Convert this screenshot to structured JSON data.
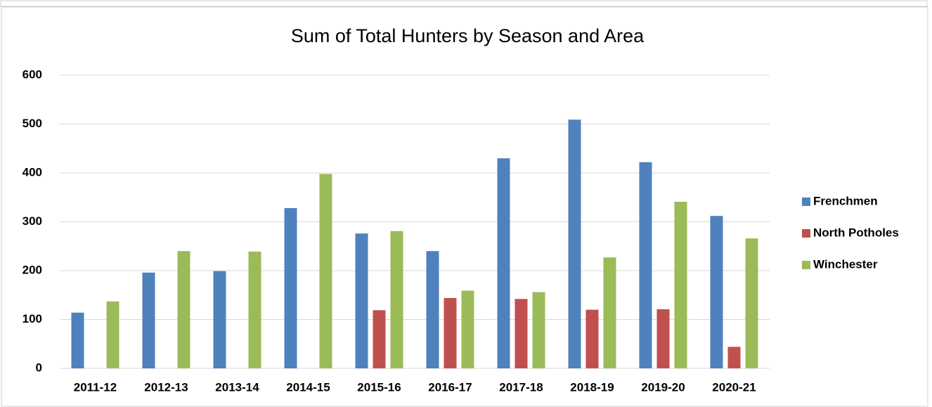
{
  "chart_data": {
    "type": "bar",
    "title": "Sum of Total Hunters by Season and Area",
    "categories": [
      "2011-12",
      "2012-13",
      "2013-14",
      "2014-15",
      "2015-16",
      "2016-17",
      "2017-18",
      "2018-19",
      "2019-20",
      "2020-21"
    ],
    "series": [
      {
        "name": "Frenchmen",
        "color": "#4f81bd",
        "values": [
          114,
          196,
          199,
          328,
          276,
          240,
          430,
          509,
          422,
          312
        ]
      },
      {
        "name": "North Potholes",
        "color": "#c0504d",
        "values": [
          null,
          null,
          null,
          null,
          119,
          144,
          142,
          120,
          121,
          44
        ]
      },
      {
        "name": "Winchester",
        "color": "#9bbb59",
        "values": [
          137,
          240,
          239,
          398,
          281,
          159,
          156,
          227,
          341,
          266
        ]
      }
    ],
    "ylim": [
      0,
      600
    ],
    "yticks": [
      0,
      100,
      200,
      300,
      400,
      500,
      600
    ],
    "grid": true,
    "legend": "right"
  }
}
